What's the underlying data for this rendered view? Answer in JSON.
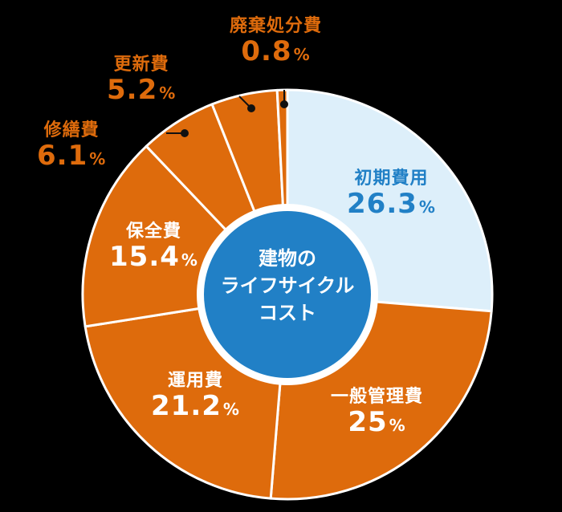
{
  "chart_data": {
    "type": "pie",
    "subtype": "donut",
    "title": "建物のライフサイクルコスト",
    "center_label": [
      "建物の",
      "ライフサイクル",
      "コスト"
    ],
    "unit": "%",
    "start_angle_deg": 0,
    "direction": "clockwise",
    "legend": "none (labels placed on/near slices)",
    "categories": [
      "初期費用",
      "一般管理費",
      "運用費",
      "保全費",
      "修繕費",
      "更新費",
      "廃棄処分費"
    ],
    "values": [
      26.3,
      25,
      21.2,
      15.4,
      6.1,
      5.2,
      0.8
    ],
    "slice_colors": [
      "#DDEFFA",
      "#DE6B0C",
      "#DE6B0C",
      "#DE6B0C",
      "#DE6B0C",
      "#DE6B0C",
      "#DE6B0C"
    ],
    "label_colors": [
      "#2180C6",
      "#FFFFFF",
      "#FFFFFF",
      "#FFFFFF",
      "#DE6B0C",
      "#DE6B0C",
      "#DE6B0C"
    ]
  },
  "colors": {
    "background": "#000000",
    "orange": "#DE6B0C",
    "light_blue": "#DDEFFA",
    "blue": "#2180C6",
    "white": "#FFFFFF"
  },
  "labels": {
    "initial": {
      "name": "初期費用",
      "value": "26.3",
      "pct": "%"
    },
    "general": {
      "name": "一般管理費",
      "value": "25",
      "pct": "%"
    },
    "operation": {
      "name": "運用費",
      "value": "21.2",
      "pct": "%"
    },
    "maintenance": {
      "name": "保全費",
      "value": "15.4",
      "pct": "%"
    },
    "repair": {
      "name": "修繕費",
      "value": "6.1",
      "pct": "%"
    },
    "renewal": {
      "name": "更新費",
      "value": "5.2",
      "pct": "%"
    },
    "disposal": {
      "name": "廃棄処分費",
      "value": "0.8",
      "pct": "%"
    }
  },
  "center": {
    "line1": "建物の",
    "line2": "ライフサイクル",
    "line3": "コスト"
  }
}
